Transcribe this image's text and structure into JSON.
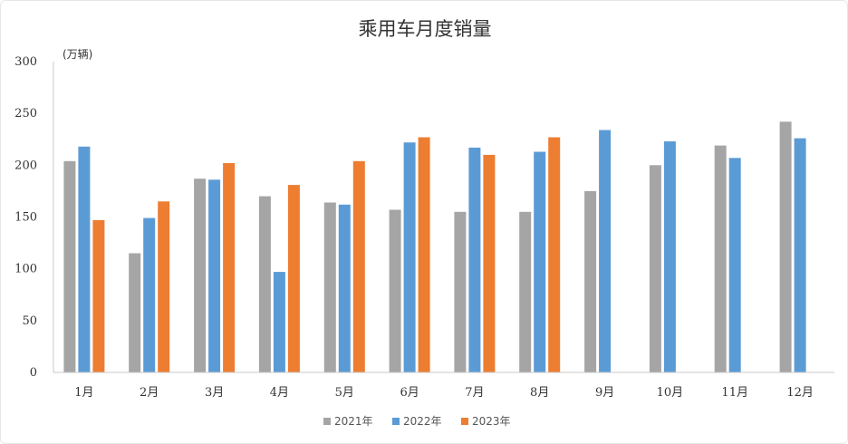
{
  "chart_data": {
    "type": "bar",
    "title": "乘用车月度销量",
    "unit_label": "(万辆)",
    "xlabel": "",
    "ylabel": "",
    "ylim": [
      0,
      300
    ],
    "yticks": [
      0,
      50,
      100,
      150,
      200,
      250,
      300
    ],
    "grid": false,
    "legend_position": "bottom",
    "categories": [
      "1月",
      "2月",
      "3月",
      "4月",
      "5月",
      "6月",
      "7月",
      "8月",
      "9月",
      "10月",
      "11月",
      "12月"
    ],
    "series": [
      {
        "name": "2021年",
        "color": "#a5a5a5",
        "values": [
          204,
          115,
          187,
          170,
          164,
          157,
          155,
          155,
          175,
          200,
          219,
          242
        ]
      },
      {
        "name": "2022年",
        "color": "#5b9bd5",
        "values": [
          218,
          149,
          186,
          97,
          162,
          222,
          217,
          213,
          234,
          223,
          207,
          226
        ]
      },
      {
        "name": "2023年",
        "color": "#ed7d31",
        "values": [
          147,
          165,
          202,
          181,
          204,
          227,
          210,
          227,
          null,
          null,
          null,
          null
        ]
      }
    ]
  }
}
